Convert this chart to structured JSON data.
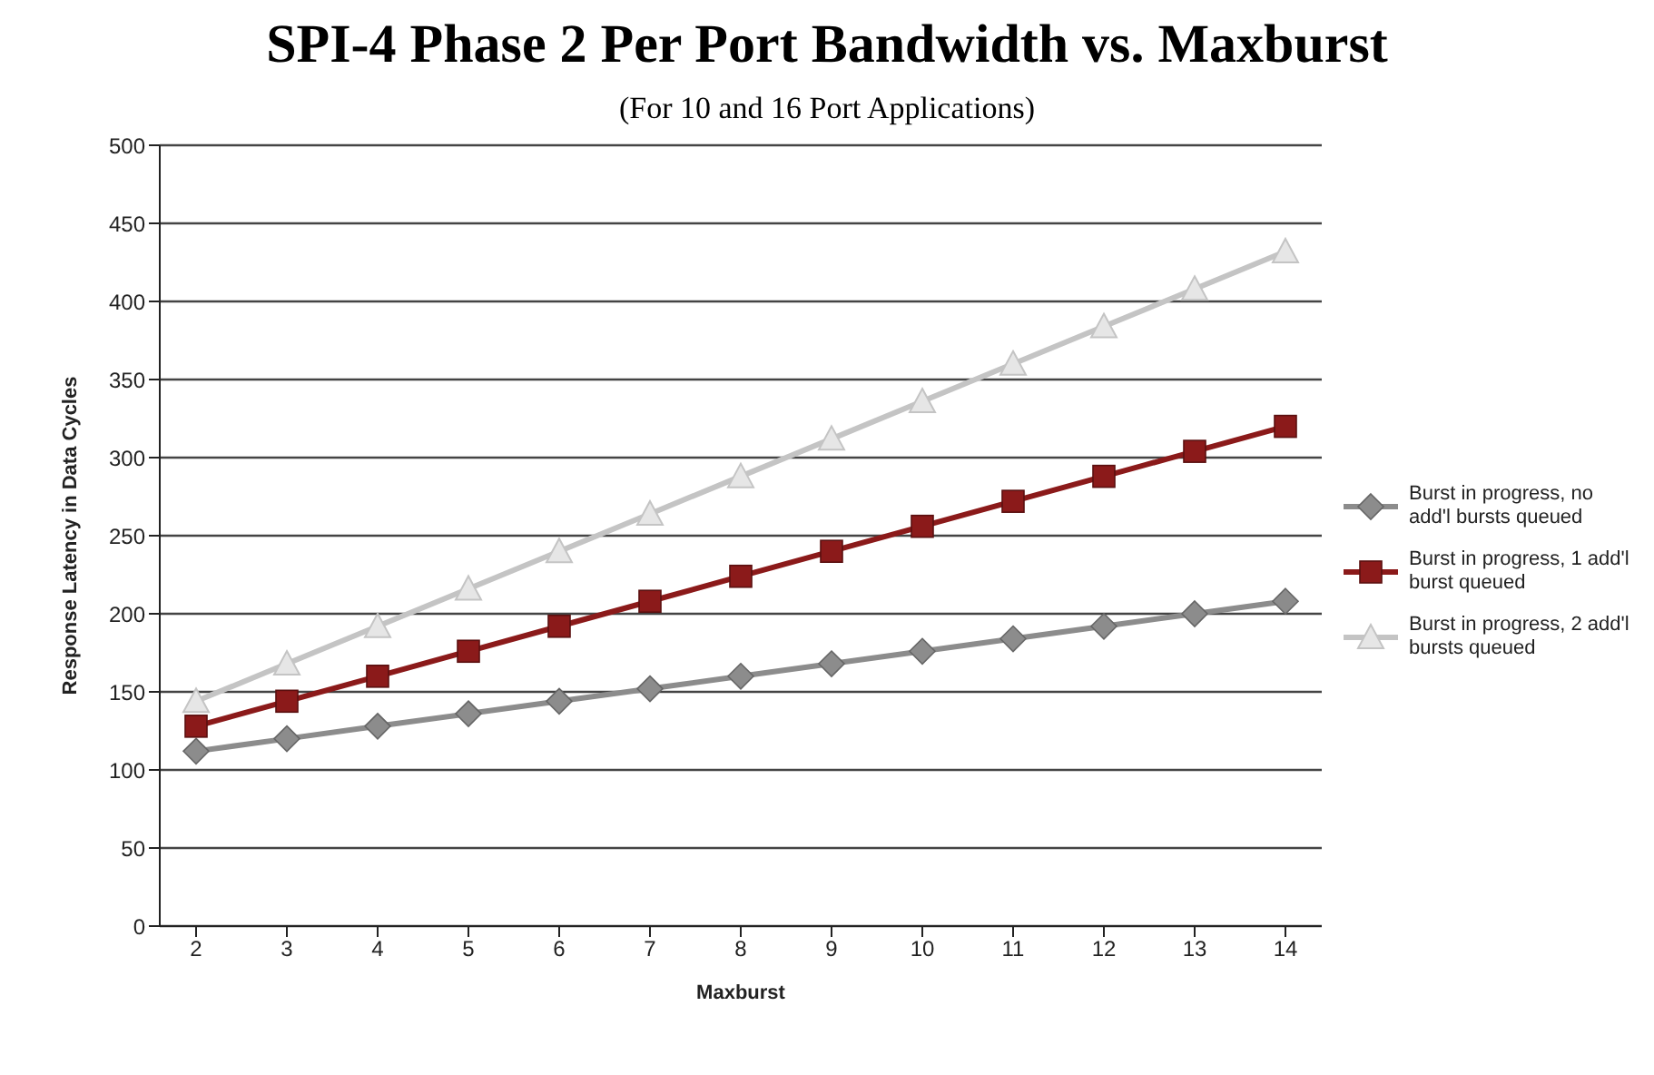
{
  "chart_data": {
    "type": "line",
    "title": "SPI-4 Phase 2 Per Port Bandwidth vs. Maxburst",
    "subtitle": "(For 10 and 16 Port Applications)",
    "xlabel": "Maxburst",
    "ylabel": "Response Latency in Data Cycles",
    "categories": [
      "2",
      "3",
      "4",
      "5",
      "6",
      "7",
      "8",
      "9",
      "10",
      "11",
      "12",
      "13",
      "14"
    ],
    "series": [
      {
        "name": "Burst in progress, no add'l bursts queued",
        "color": "#8c8c8c",
        "marker": "diamond",
        "values": [
          112,
          120,
          128,
          136,
          144,
          152,
          160,
          168,
          176,
          184,
          192,
          200,
          208
        ]
      },
      {
        "name": "Burst in progress, 1 add'l burst queued",
        "color": "#8b1a1a",
        "marker": "square",
        "values": [
          128,
          144,
          160,
          176,
          192,
          208,
          224,
          240,
          256,
          272,
          288,
          304,
          320
        ]
      },
      {
        "name": "Burst in progress, 2 add'l bursts queued",
        "color": "#c4c4c4",
        "marker": "triangle",
        "values": [
          144,
          168,
          192,
          216,
          240,
          264,
          288,
          312,
          336,
          360,
          384,
          408,
          432
        ]
      }
    ],
    "ylim": [
      0,
      500
    ],
    "yticks": [
      0,
      50,
      100,
      150,
      200,
      250,
      300,
      350,
      400,
      450,
      500
    ],
    "grid": "y",
    "legend": "right",
    "line_style": "solid"
  }
}
